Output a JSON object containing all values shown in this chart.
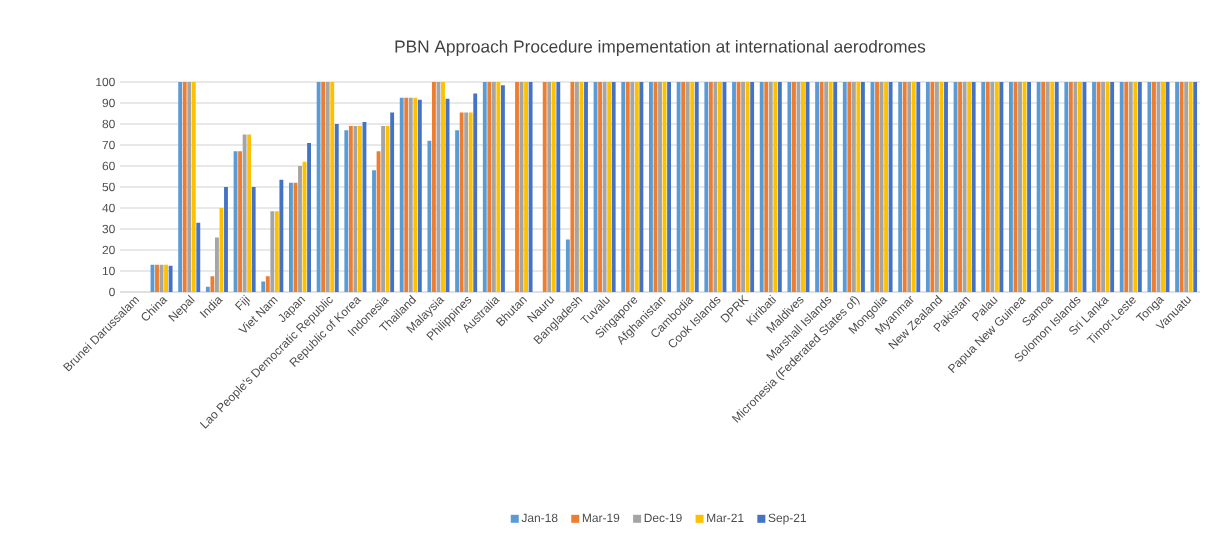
{
  "chart_data": {
    "type": "bar",
    "title": "PBN Approach Procedure impementation at international aerodromes",
    "categories": [
      "Brunei Darussalam",
      "China",
      "Nepal",
      "India",
      "Fiji",
      "Viet Nam",
      "Japan",
      "Lao People's Democratic Republic",
      "Republic of Korea",
      "Indonesia",
      "Thailand",
      "Malaysia",
      "Philippines",
      "Australia",
      "Bhutan",
      "Nauru",
      "Bangladesh",
      "Tuvalu",
      "Singapore",
      "Afghanistan",
      "Cambodia",
      "Cook Islands",
      "DPRK",
      "Kiribati",
      "Maldives",
      "Marshall Islands",
      "Micronesia (Federated States of)",
      "Mongolia",
      "Myanmar",
      "New Zealand",
      "Pakistan",
      "Palau",
      "Papua New Guinea",
      "Samoa",
      "Solomon Islands",
      "Sri Lanka",
      "Timor-Leste",
      "Tonga",
      "Vanuatu"
    ],
    "series": [
      {
        "name": "Jan-18",
        "color": "#5b9bd5",
        "values": [
          null,
          13,
          100,
          2.5,
          67,
          5,
          52,
          100,
          77,
          58,
          92.5,
          72,
          77,
          100,
          null,
          null,
          25,
          100,
          100,
          100,
          100,
          100,
          100,
          100,
          100,
          100,
          100,
          100,
          100,
          100,
          100,
          100,
          100,
          100,
          100,
          100,
          100,
          100,
          100
        ]
      },
      {
        "name": "Mar-19",
        "color": "#ed7d31",
        "values": [
          null,
          13,
          100,
          7.5,
          67,
          7.5,
          52,
          100,
          79,
          67,
          92.5,
          100,
          85.5,
          100,
          100,
          100,
          100,
          100,
          100,
          100,
          100,
          100,
          100,
          100,
          100,
          100,
          100,
          100,
          100,
          100,
          100,
          100,
          100,
          100,
          100,
          100,
          100,
          100,
          100
        ]
      },
      {
        "name": "Dec-19",
        "color": "#a5a5a5",
        "values": [
          null,
          13,
          100,
          26,
          75,
          38.5,
          60,
          100,
          79,
          79,
          92.5,
          100,
          85.5,
          100,
          100,
          100,
          100,
          100,
          100,
          100,
          100,
          100,
          100,
          100,
          100,
          100,
          100,
          100,
          100,
          100,
          100,
          100,
          100,
          100,
          100,
          100,
          100,
          100,
          100
        ]
      },
      {
        "name": "Mar-21",
        "color": "#ffc000",
        "values": [
          null,
          13,
          100,
          40,
          75,
          38.5,
          62,
          100,
          79,
          79,
          92.5,
          100,
          85.5,
          100,
          100,
          100,
          100,
          100,
          100,
          100,
          100,
          100,
          100,
          100,
          100,
          100,
          100,
          100,
          100,
          100,
          100,
          100,
          100,
          100,
          100,
          100,
          100,
          100,
          100
        ]
      },
      {
        "name": "Sep-21",
        "color": "#4472c4",
        "values": [
          null,
          12.5,
          33,
          50,
          50,
          53.5,
          71,
          80,
          81,
          85.5,
          91.5,
          92,
          94.5,
          98.5,
          100,
          100,
          100,
          100,
          100,
          100,
          100,
          100,
          100,
          100,
          100,
          100,
          100,
          100,
          100,
          100,
          100,
          100,
          100,
          100,
          100,
          100,
          100,
          100,
          100
        ]
      }
    ],
    "ylim": [
      0,
      100
    ],
    "yticks": [
      0,
      10,
      20,
      30,
      40,
      50,
      60,
      70,
      80,
      90,
      100
    ],
    "grid": "y",
    "legend": "bottom"
  }
}
